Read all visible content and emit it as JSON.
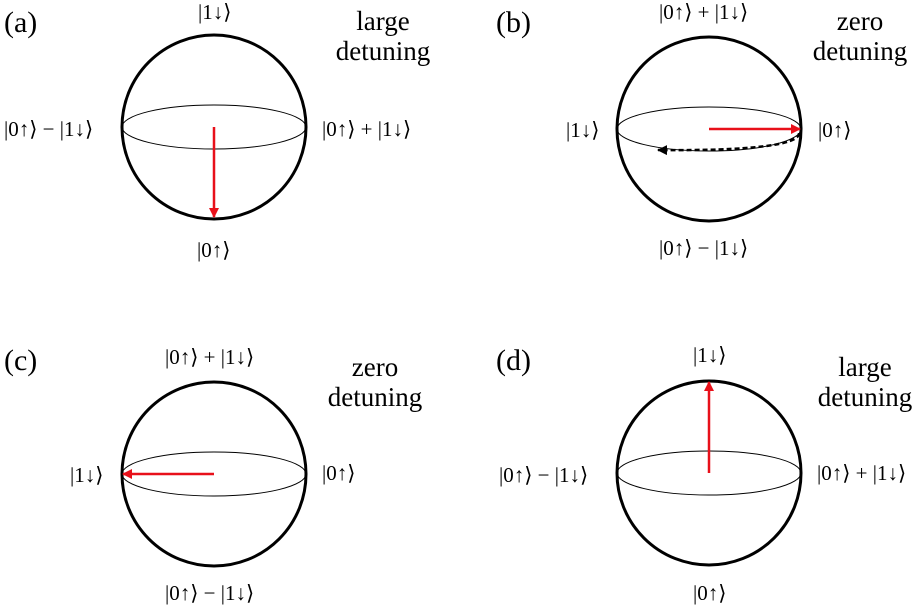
{
  "panels": [
    {
      "letter": "(a)",
      "top": "|1↓⟩",
      "bottom": "|0↑⟩",
      "left": "|0↑⟩ − |1↓⟩",
      "right": "|0↑⟩ + |1↓⟩",
      "detuning_line1": "large",
      "detuning_line2": "detuning"
    },
    {
      "letter": "(b)",
      "top": "|0↑⟩ + |1↓⟩",
      "bottom": "|0↑⟩ − |1↓⟩",
      "left": "|1↓⟩",
      "right": "|0↑⟩",
      "detuning_line1": "zero",
      "detuning_line2": "detuning"
    },
    {
      "letter": "(c)",
      "top": "|0↑⟩ + |1↓⟩",
      "bottom": "|0↑⟩ − |1↓⟩",
      "left": "|1↓⟩",
      "right": "|0↑⟩",
      "detuning_line1": "zero",
      "detuning_line2": "detuning"
    },
    {
      "letter": "(d)",
      "top": "|1↓⟩",
      "bottom": "|0↑⟩",
      "left": "|0↑⟩ − |1↓⟩",
      "right": "|0↑⟩ + |1↓⟩",
      "detuning_line1": "large",
      "detuning_line2": "detuning"
    }
  ],
  "colors": {
    "state_vector": "#e8101a",
    "trajectory": "#000000",
    "sphere": "#000000"
  }
}
